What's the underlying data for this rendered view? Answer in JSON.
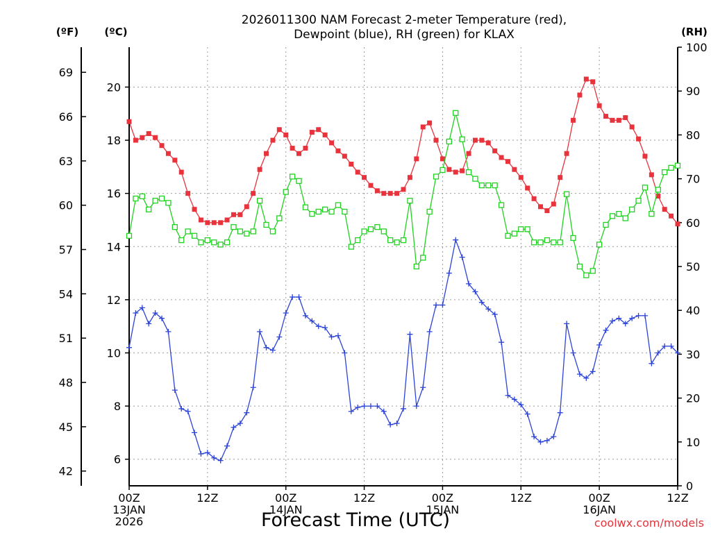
{
  "chart_data": {
    "type": "line",
    "title_line1": "2026011300 NAM Forecast 2-meter Temperature (red),",
    "title_line2": "Dewpoint (blue), RH (green) for KLAX",
    "xlabel": "Forecast Time (UTC)",
    "credit": "coolwx.com/models",
    "axis_units": {
      "f": "(ºF)",
      "c": "(ºC)",
      "rh": "(RH)"
    },
    "x_hours_range": [
      0,
      84
    ],
    "x_ticks": [
      {
        "h": 0,
        "label": "00Z",
        "sub1": "13JAN",
        "sub2": "2026"
      },
      {
        "h": 12,
        "label": "12Z",
        "sub1": "",
        "sub2": ""
      },
      {
        "h": 24,
        "label": "00Z",
        "sub1": "14JAN",
        "sub2": ""
      },
      {
        "h": 36,
        "label": "12Z",
        "sub1": "",
        "sub2": ""
      },
      {
        "h": 48,
        "label": "00Z",
        "sub1": "15JAN",
        "sub2": ""
      },
      {
        "h": 60,
        "label": "12Z",
        "sub1": "",
        "sub2": ""
      },
      {
        "h": 72,
        "label": "00Z",
        "sub1": "16JAN",
        "sub2": ""
      },
      {
        "h": 84,
        "label": "12Z",
        "sub1": "",
        "sub2": ""
      }
    ],
    "c_range": [
      5.0,
      21.5
    ],
    "c_ticks": [
      6,
      8,
      10,
      12,
      14,
      16,
      18,
      20
    ],
    "f_ticks": [
      42,
      45,
      48,
      51,
      54,
      57,
      60,
      63,
      66,
      69
    ],
    "rh_range": [
      0,
      100
    ],
    "rh_ticks": [
      0,
      10,
      20,
      30,
      40,
      50,
      60,
      70,
      80,
      90,
      100
    ],
    "grid": true,
    "colors": {
      "temperature": "#e8333c",
      "dewpoint": "#2b43d6",
      "rh": "#1fd21f",
      "grid": "#9a9a9a"
    },
    "series": [
      {
        "key": "temperature",
        "unit": "C",
        "marker": "filled-square",
        "values": [
          18.7,
          18.0,
          18.1,
          18.25,
          18.1,
          17.8,
          17.5,
          17.25,
          16.8,
          16.0,
          15.4,
          15.0,
          14.9,
          14.9,
          14.9,
          15.0,
          15.2,
          15.2,
          15.5,
          16.0,
          16.9,
          17.5,
          18.0,
          18.4,
          18.2,
          17.7,
          17.5,
          17.7,
          18.3,
          18.4,
          18.2,
          17.9,
          17.6,
          17.4,
          17.1,
          16.8,
          16.6,
          16.3,
          16.1,
          16.0,
          16.0,
          16.0,
          16.15,
          16.6,
          17.3,
          18.5,
          18.65,
          18.0,
          17.3,
          16.9,
          16.8,
          16.85,
          17.5,
          18.0,
          18.0,
          17.9,
          17.6,
          17.35,
          17.2,
          16.9,
          16.6,
          16.2,
          15.8,
          15.5,
          15.35,
          15.6,
          16.6,
          17.5,
          18.75,
          19.7,
          20.3,
          20.2,
          19.3,
          18.9,
          18.75,
          18.75,
          18.85,
          18.5,
          18.05,
          17.4,
          16.7,
          15.9,
          15.4,
          15.15,
          14.85
        ]
      },
      {
        "key": "dewpoint",
        "unit": "C",
        "marker": "plus",
        "values": [
          10.2,
          11.5,
          11.7,
          11.1,
          11.5,
          11.3,
          10.8,
          8.6,
          7.9,
          7.8,
          7.0,
          6.2,
          6.25,
          6.05,
          5.95,
          6.5,
          7.2,
          7.35,
          7.75,
          8.7,
          10.8,
          10.2,
          10.1,
          10.6,
          11.5,
          12.1,
          12.1,
          11.4,
          11.2,
          11.0,
          10.95,
          10.6,
          10.65,
          10.0,
          7.8,
          7.95,
          8.0,
          8.0,
          8.0,
          7.8,
          7.3,
          7.35,
          7.9,
          10.7,
          8.0,
          8.7,
          10.8,
          11.8,
          11.8,
          13.0,
          14.25,
          13.6,
          12.6,
          12.3,
          11.9,
          11.65,
          11.45,
          10.4,
          8.4,
          8.25,
          8.05,
          7.7,
          6.85,
          6.65,
          6.7,
          6.85,
          7.75,
          11.1,
          10.0,
          9.2,
          9.05,
          9.3,
          10.3,
          10.85,
          11.2,
          11.3,
          11.1,
          11.3,
          11.4,
          11.4,
          9.6,
          10.0,
          10.25,
          10.25,
          10.0
        ]
      },
      {
        "key": "rh",
        "unit": "%",
        "marker": "open-square",
        "values": [
          57,
          65.5,
          66,
          63,
          65,
          65.5,
          64.5,
          59,
          56,
          58,
          57,
          55.5,
          56,
          55.5,
          55,
          55.5,
          59,
          58,
          57.5,
          58,
          65,
          59.5,
          58,
          61,
          67,
          70.5,
          69.5,
          63.5,
          62,
          62.5,
          63,
          62.5,
          64,
          62.5,
          54.5,
          56,
          58,
          58.5,
          59,
          58,
          56,
          55.5,
          56,
          65,
          50,
          52,
          62.5,
          70.5,
          72,
          78.5,
          85,
          79,
          71.5,
          70,
          68.5,
          68.5,
          68.5,
          64,
          57,
          57.5,
          58.5,
          58.5,
          55.5,
          55.5,
          56,
          55.5,
          55.5,
          66.5,
          56.5,
          50,
          48,
          49,
          55,
          59.5,
          61.5,
          62,
          61,
          63,
          65,
          68,
          62,
          67.5,
          71.5,
          72.5,
          73
        ]
      }
    ]
  }
}
